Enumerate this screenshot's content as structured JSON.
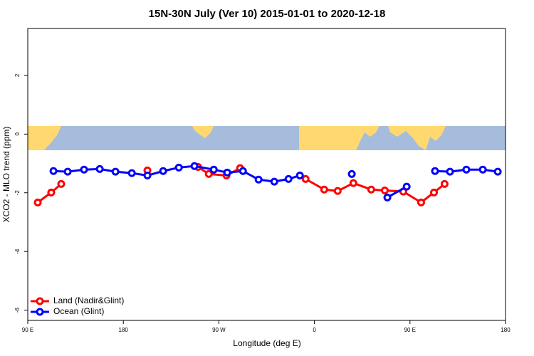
{
  "chart_data": {
    "type": "line",
    "title": "15N-30N July (Ver 10)   2015-01-01 to 2020-12-18",
    "x_label": "Longitude (deg E)",
    "y_label": "XCO2 - MLO trend (ppm)",
    "xlim": [
      90,
      540
    ],
    "ylim": [
      -6.35,
      3.6
    ],
    "xticks": [
      {
        "value": 90,
        "label": "90 E"
      },
      180,
      {
        "value": 270,
        "label": "90 W"
      },
      {
        "value": 360,
        "label": "0"
      },
      {
        "value": 450,
        "label": "90 E"
      },
      {
        "value": 540,
        "label": "180"
      }
    ],
    "yticks": [
      -6,
      -4,
      -2,
      0,
      2
    ],
    "legend": "bottom-left",
    "series": [
      {
        "name": "Land (Nadir&Glint)",
        "color": "#ff0000",
        "x": [
          99.4,
          112.1,
          121.5,
          null,
          202.7,
          null,
          250.4,
          260.5,
          277.2,
          290,
          null,
          351.7,
          369.2,
          381.9,
          396.7,
          413.5,
          426.3,
          443.7,
          460.5,
          472.6,
          482.6
        ],
        "values": [
          -2.33,
          -1.99,
          -1.7,
          null,
          -1.24,
          null,
          -1.12,
          -1.36,
          -1.41,
          -1.16,
          null,
          -1.53,
          -1.89,
          -1.94,
          -1.67,
          -1.89,
          -1.92,
          -1.96,
          -2.33,
          -1.99,
          -1.7
        ]
      },
      {
        "name": "Ocean (Glint)",
        "color": "#0000ff",
        "x": [
          114.2,
          127.6,
          143,
          157.8,
          172.6,
          188,
          202.7,
          217.5,
          232.3,
          247,
          265.2,
          277.9,
          292.7,
          307.4,
          322.2,
          335.6,
          346.3,
          null,
          395.2,
          null,
          428.7,
          446.9,
          null,
          473.6,
          487.7,
          503.1,
          518.6,
          532.7
        ],
        "values": [
          -1.26,
          -1.28,
          -1.21,
          -1.19,
          -1.28,
          -1.33,
          -1.41,
          -1.26,
          -1.14,
          -1.09,
          -1.21,
          -1.31,
          -1.26,
          -1.55,
          -1.62,
          -1.53,
          -1.41,
          null,
          -1.36,
          null,
          -2.16,
          -1.79,
          null,
          -1.26,
          -1.28,
          -1.21,
          -1.21,
          -1.28
        ]
      }
    ]
  }
}
